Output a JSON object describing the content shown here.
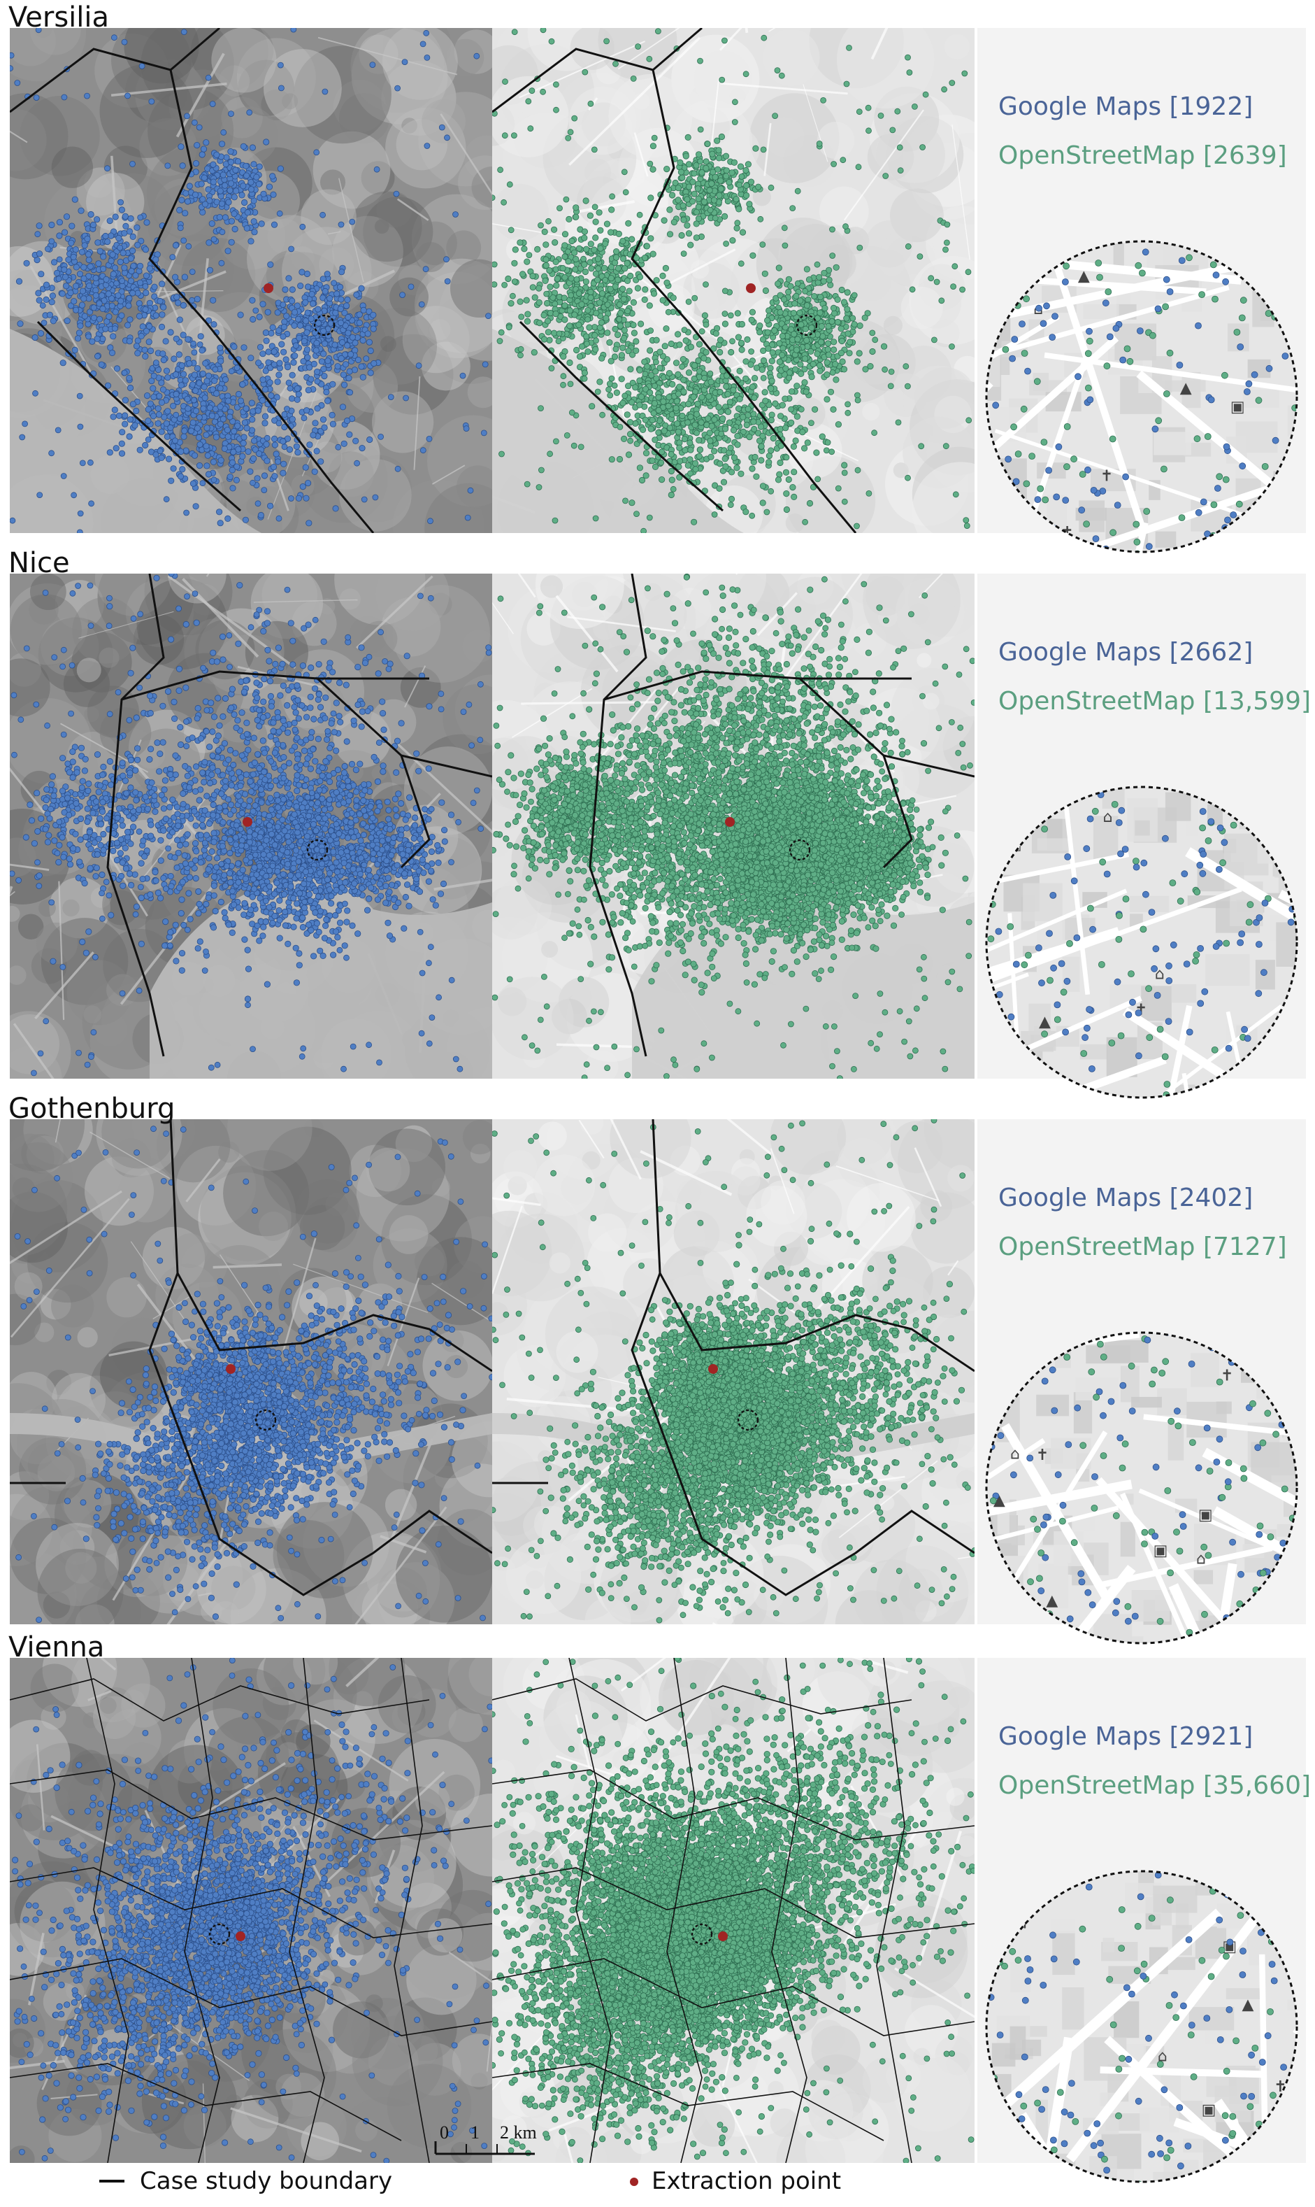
{
  "panels": [
    {
      "title": "Versilia",
      "google": "Google Maps [1922]",
      "osm": "OpenStreetMap [2639]"
    },
    {
      "title": "Nice",
      "google": "Google Maps [2662]",
      "osm": "OpenStreetMap [13,599]"
    },
    {
      "title": "Gothenburg",
      "google": "Google Maps [2402]",
      "osm": "OpenStreetMap [7127]"
    },
    {
      "title": "Vienna",
      "google": "Google Maps [2921]",
      "osm": "OpenStreetMap [35,660]"
    }
  ],
  "scale": {
    "zero": "0",
    "one": "1",
    "two": "2 km"
  },
  "legend": {
    "boundary": "Case study boundary",
    "extraction": "Extraction point"
  },
  "colors": {
    "google": "#4f7ec4",
    "osm": "#5fae86",
    "extraction": "#a02424",
    "boundary": "#111111"
  }
}
